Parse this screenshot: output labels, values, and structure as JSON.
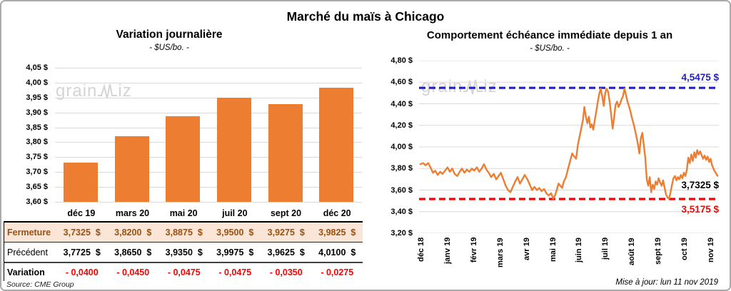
{
  "page": {
    "title": "Marché du maïs à Chicago",
    "source": "Source: CME Group",
    "updated": "Mise à jour: lun 11 nov 2019",
    "watermark": {
      "prefix": "grain",
      "suffix": "iz"
    }
  },
  "colors": {
    "orange": "#ED7D31",
    "blue": "#2222C4",
    "red": "#FF0000",
    "grid": "#D9D9D9",
    "fermeture_text": "#9C500F",
    "fermeture_bg": "#FBE5D6",
    "watermark": "#D4D4D4"
  },
  "chart_data": [
    {
      "type": "bar",
      "title": "Variation journalière",
      "subtitle": "- $US/bo. -",
      "categories": [
        "déc 19",
        "mars 20",
        "mai 20",
        "juil 20",
        "sept 20",
        "déc 20"
      ],
      "values": [
        3.7325,
        3.82,
        3.8875,
        3.95,
        3.9275,
        3.9825
      ],
      "ylim": [
        3.6,
        4.05
      ],
      "ytick_step": 0.05,
      "ytick_labels": [
        "4,05 $",
        "4,00 $",
        "3,95 $",
        "3,90 $",
        "3,85 $",
        "3,80 $",
        "3,75 $",
        "3,70 $",
        "3,65 $",
        "3,60 $"
      ],
      "bar_color": "#ED7D31",
      "grid": true
    },
    {
      "type": "line",
      "title": "Comportement échéance immédiate depuis 1 an",
      "subtitle": "- $US/bo. -",
      "x_labels": [
        "déc 18",
        "janv 19",
        "févr 19",
        "mars 19",
        "avr 19",
        "mai 19",
        "juin 19",
        "juil 19",
        "août 19",
        "sept 19",
        "oct 19",
        "nov 19"
      ],
      "x_encoding": "fraction of x-axis from déc 18 to nov 19",
      "ylim": [
        3.2,
        4.8
      ],
      "ytick_step": 0.2,
      "ytick_labels": [
        "4,80 $",
        "4,60 $",
        "4,40 $",
        "4,20 $",
        "4,00 $",
        "3,80 $",
        "3,60 $",
        "3,40 $",
        "3,20 $"
      ],
      "line_color": "#ED7D31",
      "grid": true,
      "hlines": [
        {
          "value": 4.5475,
          "label": "4,5475 $",
          "color": "#2222C4",
          "style": "dashed"
        },
        {
          "value": 3.5175,
          "label": "3,5175 $",
          "color": "#FF0000",
          "style": "dashed"
        }
      ],
      "last_label": {
        "value": 3.7325,
        "label": "3,7325 $",
        "color": "#000000"
      },
      "series": [
        {
          "name": "échéance immédiate",
          "points": [
            [
              0.0,
              3.84
            ],
            [
              0.009,
              3.85
            ],
            [
              0.017,
              3.83
            ],
            [
              0.026,
              3.85
            ],
            [
              0.034,
              3.81
            ],
            [
              0.042,
              3.76
            ],
            [
              0.05,
              3.78
            ],
            [
              0.058,
              3.74
            ],
            [
              0.066,
              3.77
            ],
            [
              0.074,
              3.75
            ],
            [
              0.083,
              3.78
            ],
            [
              0.091,
              3.81
            ],
            [
              0.099,
              3.77
            ],
            [
              0.107,
              3.8
            ],
            [
              0.115,
              3.75
            ],
            [
              0.124,
              3.73
            ],
            [
              0.132,
              3.77
            ],
            [
              0.14,
              3.8
            ],
            [
              0.148,
              3.76
            ],
            [
              0.156,
              3.79
            ],
            [
              0.165,
              3.77
            ],
            [
              0.173,
              3.8
            ],
            [
              0.181,
              3.78
            ],
            [
              0.19,
              3.81
            ],
            [
              0.198,
              3.77
            ],
            [
              0.206,
              3.8
            ],
            [
              0.214,
              3.84
            ],
            [
              0.222,
              3.79
            ],
            [
              0.23,
              3.76
            ],
            [
              0.238,
              3.72
            ],
            [
              0.247,
              3.75
            ],
            [
              0.255,
              3.7
            ],
            [
              0.263,
              3.73
            ],
            [
              0.271,
              3.76
            ],
            [
              0.279,
              3.7
            ],
            [
              0.287,
              3.64
            ],
            [
              0.295,
              3.6
            ],
            [
              0.303,
              3.58
            ],
            [
              0.311,
              3.63
            ],
            [
              0.319,
              3.68
            ],
            [
              0.327,
              3.72
            ],
            [
              0.335,
              3.66
            ],
            [
              0.343,
              3.7
            ],
            [
              0.351,
              3.74
            ],
            [
              0.36,
              3.7
            ],
            [
              0.368,
              3.65
            ],
            [
              0.376,
              3.6
            ],
            [
              0.384,
              3.63
            ],
            [
              0.392,
              3.6
            ],
            [
              0.4,
              3.62
            ],
            [
              0.408,
              3.59
            ],
            [
              0.416,
              3.61
            ],
            [
              0.424,
              3.57
            ],
            [
              0.432,
              3.55
            ],
            [
              0.44,
              3.57
            ],
            [
              0.447,
              3.52
            ],
            [
              0.453,
              3.55
            ],
            [
              0.459,
              3.6
            ],
            [
              0.465,
              3.66
            ],
            [
              0.471,
              3.64
            ],
            [
              0.477,
              3.62
            ],
            [
              0.483,
              3.68
            ],
            [
              0.49,
              3.72
            ],
            [
              0.497,
              3.8
            ],
            [
              0.504,
              3.87
            ],
            [
              0.511,
              3.94
            ],
            [
              0.518,
              3.91
            ],
            [
              0.524,
              3.89
            ],
            [
              0.53,
              4.02
            ],
            [
              0.536,
              4.1
            ],
            [
              0.542,
              4.18
            ],
            [
              0.547,
              4.25
            ],
            [
              0.552,
              4.37
            ],
            [
              0.557,
              4.28
            ],
            [
              0.562,
              4.22
            ],
            [
              0.567,
              4.28
            ],
            [
              0.572,
              4.18
            ],
            [
              0.577,
              4.21
            ],
            [
              0.582,
              4.16
            ],
            [
              0.587,
              4.25
            ],
            [
              0.592,
              4.33
            ],
            [
              0.597,
              4.42
            ],
            [
              0.602,
              4.49
            ],
            [
              0.607,
              4.54
            ],
            [
              0.612,
              4.47
            ],
            [
              0.617,
              4.38
            ],
            [
              0.622,
              4.5
            ],
            [
              0.627,
              4.54
            ],
            [
              0.632,
              4.51
            ],
            [
              0.637,
              4.42
            ],
            [
              0.642,
              4.3
            ],
            [
              0.647,
              4.17
            ],
            [
              0.652,
              4.27
            ],
            [
              0.657,
              4.39
            ],
            [
              0.662,
              4.42
            ],
            [
              0.667,
              4.37
            ],
            [
              0.672,
              4.4
            ],
            [
              0.677,
              4.44
            ],
            [
              0.682,
              4.47
            ],
            [
              0.687,
              4.54
            ],
            [
              0.692,
              4.48
            ],
            [
              0.697,
              4.42
            ],
            [
              0.702,
              4.38
            ],
            [
              0.707,
              4.33
            ],
            [
              0.712,
              4.27
            ],
            [
              0.717,
              4.22
            ],
            [
              0.722,
              4.16
            ],
            [
              0.727,
              4.1
            ],
            [
              0.732,
              4.03
            ],
            [
              0.737,
              3.94
            ],
            [
              0.742,
              4.08
            ],
            [
              0.747,
              4.13
            ],
            [
              0.752,
              4.02
            ],
            [
              0.757,
              3.9
            ],
            [
              0.762,
              3.7
            ],
            [
              0.767,
              3.64
            ],
            [
              0.772,
              3.72
            ],
            [
              0.777,
              3.58
            ],
            [
              0.782,
              3.65
            ],
            [
              0.787,
              3.61
            ],
            [
              0.792,
              3.68
            ],
            [
              0.797,
              3.65
            ],
            [
              0.802,
              3.71
            ],
            [
              0.807,
              3.67
            ],
            [
              0.812,
              3.64
            ],
            [
              0.817,
              3.69
            ],
            [
              0.822,
              3.62
            ],
            [
              0.827,
              3.56
            ],
            [
              0.832,
              3.53
            ],
            [
              0.837,
              3.52
            ],
            [
              0.842,
              3.58
            ],
            [
              0.847,
              3.65
            ],
            [
              0.852,
              3.71
            ],
            [
              0.857,
              3.73
            ],
            [
              0.862,
              3.69
            ],
            [
              0.867,
              3.72
            ],
            [
              0.872,
              3.7
            ],
            [
              0.877,
              3.74
            ],
            [
              0.882,
              3.71
            ],
            [
              0.887,
              3.76
            ],
            [
              0.892,
              3.73
            ],
            [
              0.897,
              3.79
            ],
            [
              0.902,
              3.9
            ],
            [
              0.907,
              3.85
            ],
            [
              0.912,
              3.93
            ],
            [
              0.917,
              3.87
            ],
            [
              0.922,
              3.95
            ],
            [
              0.927,
              3.9
            ],
            [
              0.932,
              3.97
            ],
            [
              0.937,
              3.93
            ],
            [
              0.942,
              3.96
            ],
            [
              0.947,
              3.92
            ],
            [
              0.952,
              3.89
            ],
            [
              0.957,
              3.92
            ],
            [
              0.962,
              3.88
            ],
            [
              0.967,
              3.91
            ],
            [
              0.972,
              3.86
            ],
            [
              0.977,
              3.89
            ],
            [
              0.982,
              3.83
            ],
            [
              0.988,
              3.79
            ],
            [
              0.994,
              3.76
            ],
            [
              1.0,
              3.7325
            ]
          ]
        }
      ]
    }
  ],
  "table": {
    "headers": [
      "déc 19",
      "mars 20",
      "mai 20",
      "juil 20",
      "sept 20",
      "déc 20"
    ],
    "rows": [
      {
        "label": "Fermeture",
        "values": [
          "3,7325  $",
          "3,8200  $",
          "3,8875  $",
          "3,9500  $",
          "3,9275  $",
          "3,9825  $"
        ]
      },
      {
        "label": "Précédent",
        "values": [
          "3,7725  $",
          "3,8650  $",
          "3,9350  $",
          "3,9975  $",
          "3,9625  $",
          "4,0100  $"
        ]
      },
      {
        "label": "Variation",
        "values": [
          "- 0,0400",
          "- 0,0450",
          "- 0,0475",
          "- 0,0475",
          "- 0,0350",
          "- 0,0275"
        ]
      }
    ]
  }
}
